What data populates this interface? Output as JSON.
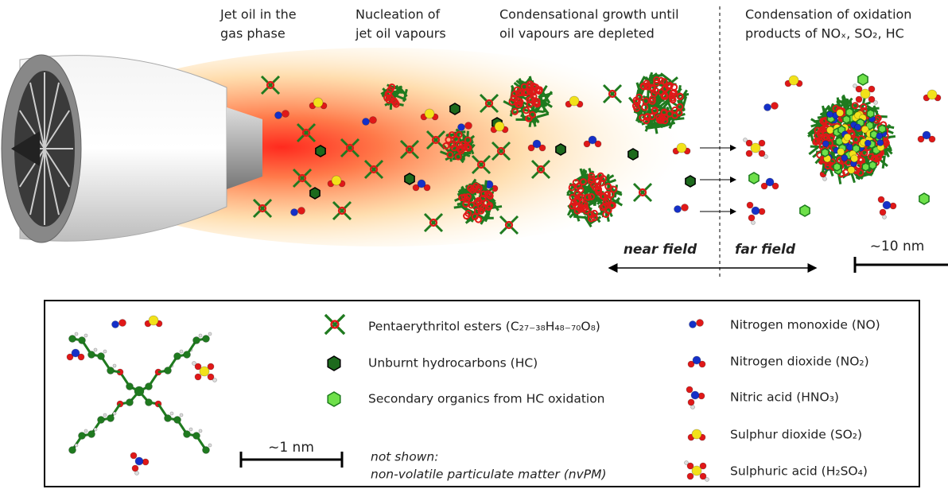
{
  "stages": [
    {
      "lines": [
        "Jet oil in the",
        "gas phase"
      ]
    },
    {
      "lines": [
        "Nucleation of",
        "jet oil vapours"
      ]
    },
    {
      "lines": [
        "Condensational growth until",
        "oil vapours are depleted"
      ]
    },
    {
      "lines": [
        "Condensation of oxidation",
        "products of NOₓ, SO₂, HC"
      ]
    }
  ],
  "labels": {
    "near_field": "near field",
    "far_field": "far field",
    "scale_large": "~10 nm",
    "scale_small": "~1 nm"
  },
  "legend": {
    "items": [
      "Pentaerythritol esters (C₂₇₋₃₈H₄₈₋₇₀O₈)",
      "Unburnt hydrocarbons (HC)",
      "Secondary organics from HC oxidation",
      "Nitrogen monoxide (NO)",
      "Nitrogen dioxide (NO₂)",
      "Nitric acid (HNO₃)",
      "Sulphur dioxide (SO₂)",
      "Sulphuric acid (H₂SO₄)"
    ],
    "note": [
      "not shown:",
      "non-volatile particulate matter (nvPM)"
    ]
  }
}
